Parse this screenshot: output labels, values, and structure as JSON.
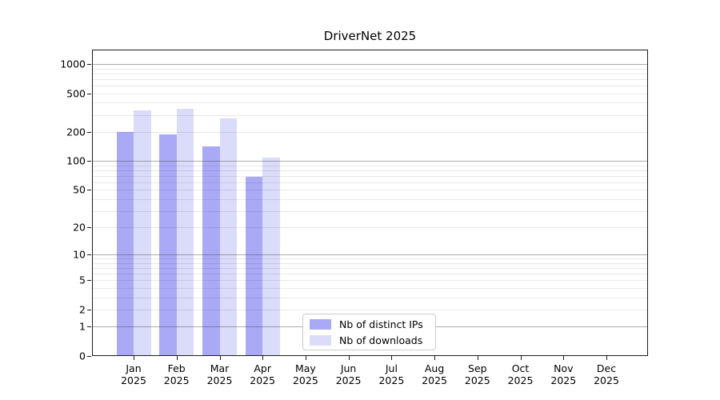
{
  "title": "DriverNet 2025",
  "chart_data": {
    "type": "bar",
    "title": "DriverNet 2025",
    "scale": "log10(1+y)",
    "categories": [
      "Jan",
      "Feb",
      "Mar",
      "Apr",
      "May",
      "Jun",
      "Jul",
      "Aug",
      "Sep",
      "Oct",
      "Nov",
      "Dec"
    ],
    "year_label": "2025",
    "series": [
      {
        "name": "Nb of distinct IPs",
        "color": "#a9a9f6",
        "values": [
          198,
          190,
          143,
          69,
          0,
          0,
          0,
          0,
          0,
          0,
          0,
          0
        ]
      },
      {
        "name": "Nb of downloads",
        "color": "#dbdbfa",
        "values": [
          333,
          350,
          276,
          108,
          0,
          0,
          0,
          0,
          0,
          0,
          0,
          0
        ]
      }
    ],
    "y_ticks": [
      0,
      1,
      2,
      5,
      10,
      20,
      50,
      100,
      200,
      500,
      1000
    ],
    "major_grid_values": [
      1,
      10,
      100,
      1000
    ],
    "ylim": [
      0,
      1410
    ],
    "xlabel": "",
    "ylabel": "",
    "grid": true,
    "legend_position": "lower center-left",
    "colors": {
      "background": "#ffffff",
      "spine": "#1c1c1c",
      "text": "#000000",
      "major_grid": "#b3b3b3",
      "minor_grid": "#e8e8e8"
    }
  }
}
